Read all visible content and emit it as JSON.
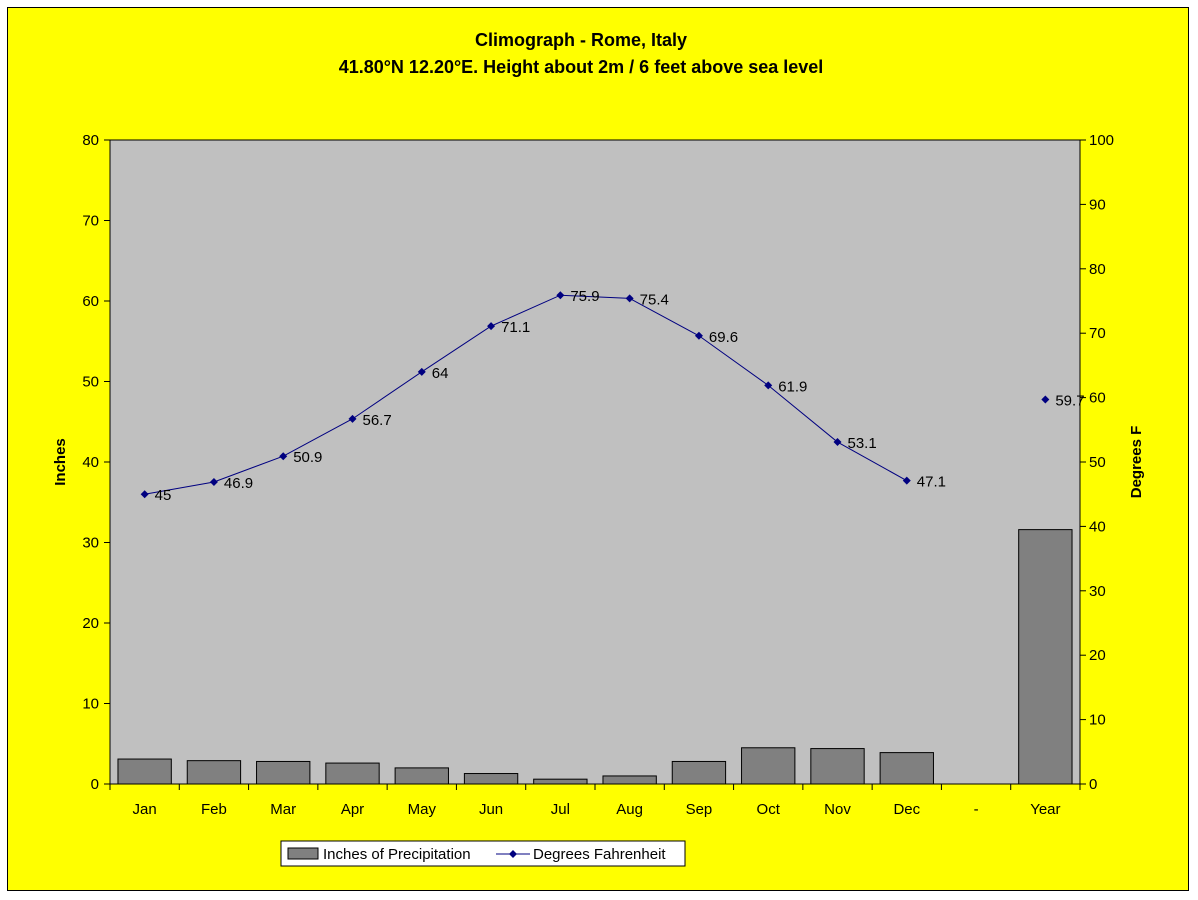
{
  "chart_data": {
    "type": "bar",
    "title": "Climograph - Rome, Italy",
    "subtitle": "41.80°N 12.20°E. Height about 2m / 6 feet above sea level",
    "categories": [
      "Jan",
      "Feb",
      "Mar",
      "Apr",
      "May",
      "Jun",
      "Jul",
      "Aug",
      "Sep",
      "Oct",
      "Nov",
      "Dec",
      "-",
      "Year"
    ],
    "series": [
      {
        "name": "Inches of Precipitation",
        "type": "bar",
        "axis": "left",
        "color": "#808080",
        "values": [
          3.1,
          2.9,
          2.8,
          2.6,
          2.0,
          1.3,
          0.6,
          1.0,
          2.8,
          4.5,
          4.4,
          3.9,
          null,
          31.6
        ]
      },
      {
        "name": "Degrees Fahrenheit",
        "type": "line",
        "axis": "right",
        "color": "#000080",
        "values": [
          45,
          46.9,
          50.9,
          56.7,
          64,
          71.1,
          75.9,
          75.4,
          69.6,
          61.9,
          53.1,
          47.1,
          null,
          59.7
        ],
        "labels": [
          "45",
          "46.9",
          "50.9",
          "56.7",
          "64",
          "71.1",
          "75.9",
          "75.4",
          "69.6",
          "61.9",
          "53.1",
          "47.1",
          "",
          "59.7"
        ]
      }
    ],
    "ylabel": "Inches",
    "y2label": "Degrees F",
    "ylim": [
      0,
      80
    ],
    "y2lim": [
      0,
      100
    ],
    "yticks": [
      "0",
      "10",
      "20",
      "30",
      "40",
      "50",
      "60",
      "70",
      "80"
    ],
    "y2ticks": [
      "0",
      "10",
      "20",
      "30",
      "40",
      "50",
      "60",
      "70",
      "80",
      "90",
      "100"
    ],
    "grid": false,
    "plot_background": "#c0c0c0",
    "chart_background": "#ffff00",
    "legend_position": "bottom"
  }
}
